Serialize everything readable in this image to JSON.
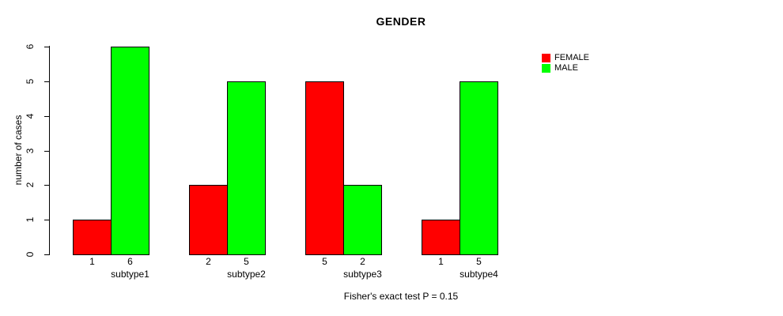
{
  "chart_data": {
    "type": "bar",
    "title": "GENDER",
    "xlabel": "",
    "ylabel": "number of cases",
    "categories": [
      "subtype1",
      "subtype2",
      "subtype3",
      "subtype4"
    ],
    "series": [
      {
        "name": "FEMALE",
        "color": "#FF0000",
        "values": [
          1,
          2,
          5,
          1
        ]
      },
      {
        "name": "MALE",
        "color": "#00FF00",
        "values": [
          6,
          5,
          2,
          5
        ]
      }
    ],
    "ylim": [
      0,
      6
    ],
    "yticks": [
      0,
      1,
      2,
      3,
      4,
      5,
      6
    ],
    "grid": false,
    "legend_position": "right",
    "bar_value_labels": true,
    "footnote": "Fisher's exact test P = 0.15"
  }
}
